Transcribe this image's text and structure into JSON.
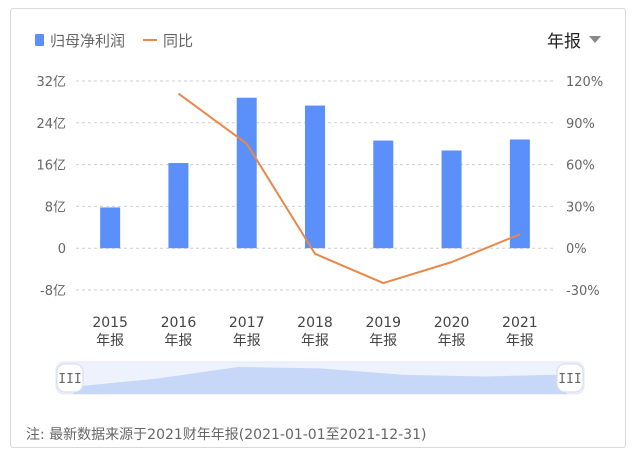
{
  "legend": {
    "bar_label": "归母净利润",
    "line_label": "同比"
  },
  "period_selector": {
    "label": "年报"
  },
  "note": "注: 最新数据来源于2021财年年报(2021-01-01至2021-12-31)",
  "slider": {
    "handle_glyph": "III"
  },
  "colors": {
    "bar": "#5b8ff9",
    "line": "#e8884a",
    "slider_fill": "#c7d7f8",
    "slider_bg": "#edf2fd"
  },
  "chart_data": {
    "type": "bar",
    "categories": [
      "2015\n年报",
      "2016\n年报",
      "2017\n年报",
      "2018\n年报",
      "2019\n年报",
      "2020\n年报",
      "2021\n年报"
    ],
    "series": [
      {
        "name": "归母净利润",
        "type": "bar",
        "axis": "left",
        "values": [
          7.8,
          16.3,
          28.8,
          27.3,
          20.6,
          18.7,
          20.8
        ]
      },
      {
        "name": "同比",
        "type": "line",
        "axis": "right",
        "values": [
          null,
          111,
          75,
          -4,
          -25,
          -10,
          10
        ]
      }
    ],
    "y_left": {
      "ticks": [
        "32亿",
        "24亿",
        "16亿",
        "8亿",
        "0",
        "-8亿"
      ],
      "ylim": [
        -8,
        32
      ]
    },
    "y_right": {
      "ticks": [
        "120%",
        "90%",
        "60%",
        "30%",
        "0%",
        "-30%"
      ],
      "ylim": [
        -30,
        120
      ]
    },
    "grid": true,
    "legend_position": "top-left"
  }
}
